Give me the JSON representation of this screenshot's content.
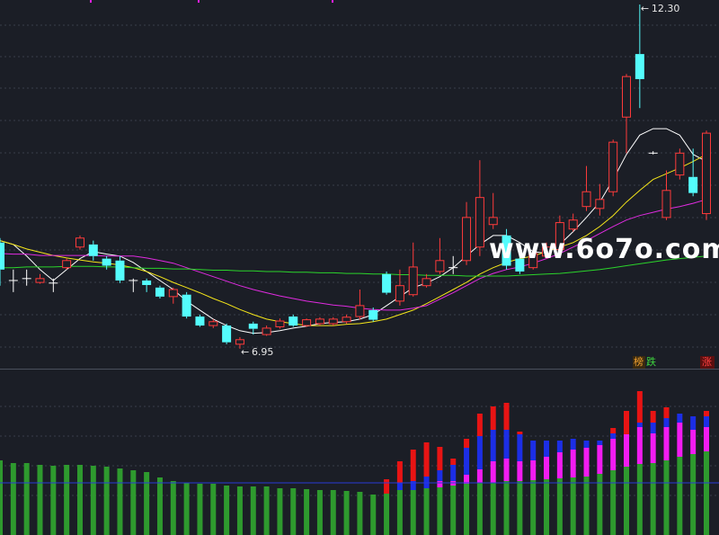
{
  "chart_data": [
    {
      "type": "candlestick",
      "ylim": [
        6.64,
        12.37
      ],
      "up_color": "#ff3b3b",
      "down_color": "#54fcfc",
      "open": [
        8.6,
        8.01,
        8.04,
        7.98,
        7.97,
        8.21,
        8.53,
        8.57,
        8.35,
        8.32,
        8.01,
        8.01,
        7.9,
        7.76,
        7.79,
        7.45,
        7.31,
        7.31,
        7.02,
        7.34,
        7.17,
        7.29,
        7.45,
        7.31,
        7.34,
        7.34,
        7.37,
        7.45,
        7.55,
        8.11,
        7.69,
        7.79,
        7.93,
        8.15,
        8.21,
        8.32,
        8.53,
        8.88,
        8.71,
        8.35,
        8.21,
        8.39,
        8.49,
        8.81,
        9.16,
        9.13,
        9.39,
        10.55,
        11.53,
        9.99,
        8.99,
        9.65,
        9.62,
        9.05
      ],
      "close": [
        8.18,
        8.01,
        8.04,
        8.04,
        7.97,
        8.32,
        8.67,
        8.39,
        8.24,
        8.01,
        8.01,
        7.94,
        7.76,
        7.87,
        7.45,
        7.31,
        7.37,
        7.05,
        7.09,
        7.26,
        7.27,
        7.38,
        7.31,
        7.4,
        7.41,
        7.41,
        7.44,
        7.62,
        7.4,
        7.82,
        7.93,
        8.22,
        8.04,
        8.32,
        8.21,
        8.99,
        9.3,
        8.99,
        8.24,
        8.15,
        8.43,
        8.53,
        8.91,
        8.95,
        9.39,
        9.27,
        10.16,
        11.18,
        11.14,
        9.99,
        9.41,
        9.99,
        9.37,
        10.3
      ],
      "high": [
        8.67,
        8.18,
        8.18,
        8.11,
        8.04,
        8.35,
        8.71,
        8.63,
        8.39,
        8.39,
        8.04,
        8.04,
        7.93,
        7.9,
        7.83,
        7.48,
        7.41,
        7.34,
        7.13,
        7.37,
        7.31,
        7.42,
        7.48,
        7.42,
        7.44,
        7.44,
        7.48,
        7.87,
        7.59,
        8.15,
        8.18,
        8.6,
        8.11,
        8.67,
        8.39,
        9.23,
        9.88,
        9.37,
        8.81,
        8.43,
        8.49,
        8.6,
        9.02,
        9.05,
        9.79,
        9.51,
        10.2,
        11.22,
        12.3,
        10.02,
        9.72,
        10.06,
        10.06,
        10.34
      ],
      "low": [
        7.93,
        7.83,
        7.93,
        7.96,
        7.83,
        8.18,
        8.49,
        8.32,
        8.18,
        7.97,
        7.83,
        7.83,
        7.73,
        7.65,
        7.42,
        7.29,
        7.27,
        7.02,
        6.95,
        7.17,
        7.15,
        7.26,
        7.29,
        7.29,
        7.31,
        7.31,
        7.34,
        7.4,
        7.37,
        7.79,
        7.62,
        7.76,
        7.9,
        8.11,
        8.11,
        8.25,
        8.39,
        8.81,
        8.18,
        8.11,
        8.18,
        8.35,
        8.39,
        8.77,
        9.09,
        9.02,
        9.32,
        9.99,
        10.69,
        9.97,
        8.95,
        9.58,
        9.32,
        8.95
      ],
      "series": [
        {
          "color": "#ffffff",
          "values": [
            8.63,
            8.57,
            8.39,
            8.18,
            8.01,
            8.18,
            8.35,
            8.46,
            8.42,
            8.39,
            8.29,
            8.15,
            8.01,
            7.87,
            7.69,
            7.55,
            7.41,
            7.31,
            7.23,
            7.19,
            7.2,
            7.23,
            7.27,
            7.3,
            7.34,
            7.36,
            7.37,
            7.41,
            7.48,
            7.62,
            7.76,
            7.9,
            7.97,
            8.07,
            8.21,
            8.39,
            8.57,
            8.71,
            8.71,
            8.6,
            8.46,
            8.43,
            8.57,
            8.77,
            8.99,
            9.23,
            9.58,
            9.97,
            10.27,
            10.37,
            10.37,
            10.27,
            9.97,
            9.86
          ]
        },
        {
          "color": "#f5e61a",
          "values": [
            8.63,
            8.57,
            8.5,
            8.45,
            8.4,
            8.36,
            8.33,
            8.3,
            8.28,
            8.25,
            8.21,
            8.15,
            8.07,
            7.98,
            7.9,
            7.82,
            7.73,
            7.65,
            7.56,
            7.48,
            7.41,
            7.37,
            7.34,
            7.31,
            7.31,
            7.31,
            7.33,
            7.34,
            7.37,
            7.41,
            7.48,
            7.55,
            7.65,
            7.76,
            7.87,
            7.98,
            8.11,
            8.21,
            8.29,
            8.35,
            8.39,
            8.46,
            8.53,
            8.6,
            8.71,
            8.85,
            9.02,
            9.23,
            9.41,
            9.58,
            9.67,
            9.76,
            9.86,
            9.97
          ]
        },
        {
          "color": "#e02be0",
          "values": [
            8.43,
            8.42,
            8.42,
            8.4,
            8.4,
            8.4,
            8.4,
            8.4,
            8.39,
            8.39,
            8.39,
            8.36,
            8.32,
            8.28,
            8.21,
            8.14,
            8.07,
            8.0,
            7.93,
            7.87,
            7.82,
            7.77,
            7.73,
            7.69,
            7.66,
            7.63,
            7.61,
            7.58,
            7.56,
            7.55,
            7.55,
            7.58,
            7.62,
            7.72,
            7.82,
            7.93,
            8.04,
            8.12,
            8.18,
            8.22,
            8.28,
            8.35,
            8.43,
            8.53,
            8.63,
            8.74,
            8.85,
            8.95,
            9.02,
            9.07,
            9.12,
            9.16,
            9.21,
            9.27
          ]
        },
        {
          "color": "#2bd42b",
          "values": [
            8.21,
            8.21,
            8.22,
            8.22,
            8.22,
            8.23,
            8.23,
            8.23,
            8.22,
            8.22,
            8.21,
            8.2,
            8.2,
            8.19,
            8.19,
            8.18,
            8.17,
            8.17,
            8.16,
            8.16,
            8.15,
            8.15,
            8.14,
            8.14,
            8.13,
            8.13,
            8.12,
            8.12,
            8.11,
            8.11,
            8.1,
            8.1,
            8.09,
            8.09,
            8.09,
            8.08,
            8.08,
            8.08,
            8.08,
            8.09,
            8.1,
            8.11,
            8.12,
            8.14,
            8.16,
            8.18,
            8.21,
            8.24,
            8.27,
            8.3,
            8.33,
            8.35,
            8.37,
            8.39
          ]
        }
      ],
      "annotations": [
        {
          "value": 12.3,
          "label": "12.30"
        },
        {
          "value": 6.95,
          "label": "6.95"
        }
      ]
    },
    {
      "type": "bar",
      "stacked": true,
      "ylim": [
        0,
        183
      ],
      "reference_line": {
        "value": 58,
        "color": "#2a3bd6"
      },
      "series": [
        {
          "color": "#2e9a2e",
          "values": [
            83,
            80,
            80,
            78,
            77,
            78,
            78,
            77,
            76,
            74,
            72,
            70,
            64,
            60,
            58,
            57,
            57,
            55,
            54,
            54,
            54,
            52,
            52,
            51,
            50,
            50,
            49,
            48,
            45,
            46,
            50,
            50,
            52,
            53,
            55,
            57,
            58,
            58,
            60,
            60,
            61,
            62,
            63,
            64,
            65,
            68,
            72,
            76,
            79,
            80,
            83,
            87,
            90,
            93
          ]
        },
        {
          "color": "#f21cf2",
          "values": [
            0,
            0,
            0,
            0,
            0,
            0,
            0,
            0,
            0,
            0,
            0,
            0,
            0,
            0,
            0,
            0,
            0,
            0,
            0,
            0,
            0,
            0,
            0,
            0,
            0,
            0,
            0,
            0,
            0,
            0,
            0,
            0,
            0,
            7,
            5,
            10,
            15,
            24,
            25,
            22,
            22,
            25,
            29,
            31,
            32,
            32,
            35,
            36,
            41,
            33,
            37,
            38,
            27,
            27
          ]
        },
        {
          "color": "#1c2ee6",
          "values": [
            0,
            0,
            0,
            0,
            0,
            0,
            0,
            0,
            0,
            0,
            0,
            0,
            0,
            0,
            0,
            0,
            0,
            0,
            0,
            0,
            0,
            0,
            0,
            0,
            0,
            0,
            0,
            0,
            0,
            0,
            8,
            10,
            13,
            12,
            18,
            30,
            37,
            35,
            32,
            30,
            22,
            18,
            13,
            12,
            8,
            5,
            6,
            0,
            5,
            12,
            10,
            10,
            15,
            12
          ]
        },
        {
          "color": "#e81414",
          "values": [
            0,
            0,
            0,
            0,
            0,
            0,
            0,
            0,
            0,
            0,
            0,
            0,
            0,
            0,
            0,
            0,
            0,
            0,
            0,
            0,
            0,
            0,
            0,
            0,
            0,
            0,
            0,
            0,
            0,
            16,
            24,
            35,
            38,
            26,
            7,
            10,
            25,
            26,
            30,
            3,
            0,
            0,
            0,
            0,
            0,
            0,
            6,
            26,
            35,
            13,
            12,
            0,
            0,
            6
          ]
        }
      ]
    }
  ],
  "watermark": "www.6o7o.com",
  "tags": [
    {
      "text": "榜",
      "color": "#f0a030"
    },
    {
      "text": "跌",
      "color": "#3fd43f"
    },
    {
      "text": "涨",
      "color": "#ff4040"
    }
  ]
}
